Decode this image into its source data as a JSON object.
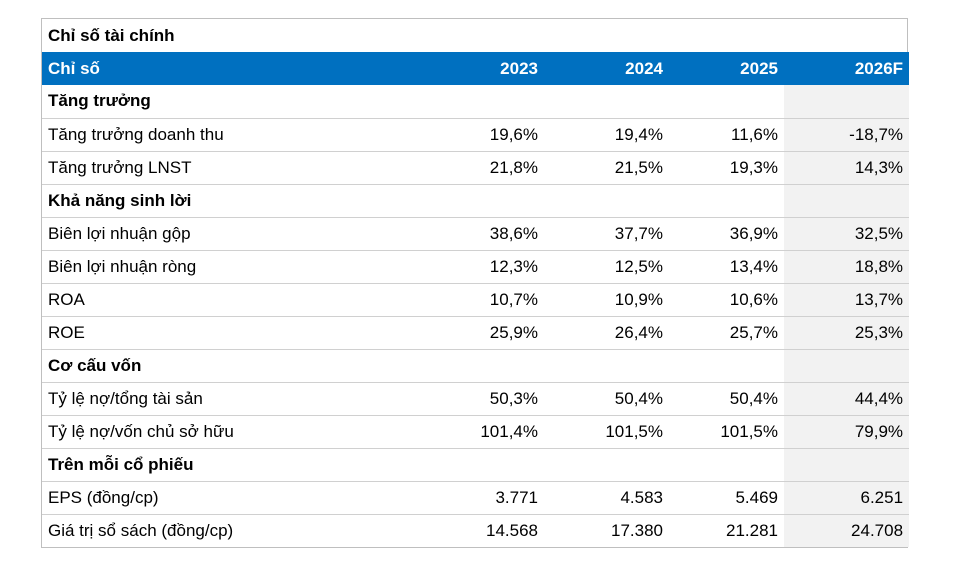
{
  "title": "Chỉ số tài chính",
  "header": {
    "label": "Chỉ số",
    "years": [
      "2023",
      "2024",
      "2025",
      "2026F"
    ]
  },
  "sections": [
    {
      "name": "Tăng trưởng",
      "rows": [
        {
          "label": "Tăng trưởng doanh thu",
          "values": [
            "19,6%",
            "19,4%",
            "11,6%",
            "-18,7%"
          ]
        },
        {
          "label": "Tăng trưởng LNST",
          "values": [
            "21,8%",
            "21,5%",
            "19,3%",
            "14,3%"
          ]
        }
      ]
    },
    {
      "name": "Khả năng sinh lời",
      "rows": [
        {
          "label": "Biên lợi nhuận gộp",
          "values": [
            "38,6%",
            "37,7%",
            "36,9%",
            "32,5%"
          ]
        },
        {
          "label": "Biên lợi nhuận ròng",
          "values": [
            "12,3%",
            "12,5%",
            "13,4%",
            "18,8%"
          ]
        },
        {
          "label": "ROA",
          "values": [
            "10,7%",
            "10,9%",
            "10,6%",
            "13,7%"
          ]
        },
        {
          "label": "ROE",
          "values": [
            "25,9%",
            "26,4%",
            "25,7%",
            "25,3%"
          ]
        }
      ]
    },
    {
      "name": "Cơ cấu vốn",
      "rows": [
        {
          "label": "Tỷ lệ nợ/tổng tài sản",
          "values": [
            "50,3%",
            "50,4%",
            "50,4%",
            "44,4%"
          ]
        },
        {
          "label": "Tỷ lệ nợ/vốn chủ sở hữu",
          "values": [
            "101,4%",
            "101,5%",
            "101,5%",
            "79,9%"
          ]
        }
      ]
    },
    {
      "name": "Trên mỗi cổ phiếu",
      "rows": [
        {
          "label": "EPS (đồng/cp)",
          "values": [
            "3.771",
            "4.583",
            "5.469",
            "6.251"
          ]
        },
        {
          "label": "Giá trị sổ sách (đồng/cp)",
          "values": [
            "14.568",
            "17.380",
            "21.281",
            "24.708"
          ]
        }
      ]
    }
  ],
  "colors": {
    "header_bg": "#0070c0",
    "header_text": "#ffffff",
    "forecast_bg": "#f2f2f2",
    "border": "#d0d0d0"
  }
}
